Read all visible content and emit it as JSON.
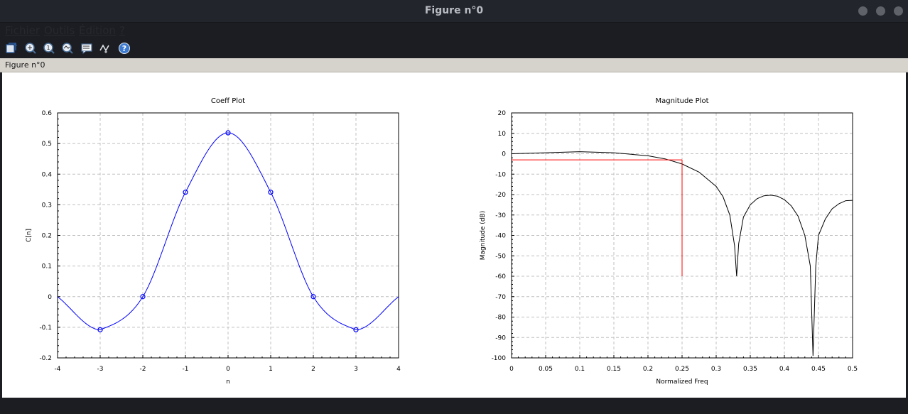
{
  "window": {
    "title": "Figure n°0",
    "buttons": [
      "minimize",
      "maximize",
      "close"
    ]
  },
  "menu": {
    "items": [
      {
        "label": "Fichier"
      },
      {
        "label": "Outils"
      },
      {
        "label": "Édition"
      },
      {
        "label": "?"
      }
    ]
  },
  "toolbar": {
    "tools": [
      {
        "icon": "rotate-icon"
      },
      {
        "icon": "zoom-icon"
      },
      {
        "icon": "zoom-reset-icon"
      },
      {
        "icon": "datatip-icon"
      },
      {
        "icon": "legend-icon"
      },
      {
        "icon": "curve-icon"
      },
      {
        "icon": "help-icon"
      }
    ]
  },
  "figure_label": "Figure n°0",
  "colors": {
    "coeff_series": "#0000ff",
    "magnitude_series": "#000000",
    "reference_line": "#ff0000",
    "grid": "#c0c0c0"
  },
  "chart_data": [
    {
      "type": "line",
      "title": "Coeff Plot",
      "xlabel": "n",
      "ylabel": "C[n]",
      "xlim": [
        -4,
        4
      ],
      "ylim": [
        -0.2,
        0.6
      ],
      "xticks": [
        -4,
        -3,
        -2,
        -1,
        0,
        1,
        2,
        3,
        4
      ],
      "yticks": [
        -0.2,
        -0.1,
        0,
        0.1,
        0.2,
        0.3,
        0.4,
        0.5,
        0.6
      ],
      "grid": true,
      "series": [
        {
          "style": "line+circle markers",
          "x": [
            -3,
            -2,
            -1,
            0,
            1,
            2,
            3
          ],
          "y": [
            -0.108,
            0.0,
            0.341,
            0.535,
            0.341,
            0.0,
            -0.108
          ]
        }
      ]
    },
    {
      "type": "line",
      "title": "Magnitude Plot",
      "xlabel": "Normalized Freq",
      "ylabel": "Magnitude (dB)",
      "xlim": [
        0,
        0.5
      ],
      "ylim": [
        -100,
        20
      ],
      "xticks": [
        0,
        0.05,
        0.1,
        0.15,
        0.2,
        0.25,
        0.3,
        0.35,
        0.4,
        0.45,
        0.5
      ],
      "yticks": [
        -100,
        -90,
        -80,
        -70,
        -60,
        -50,
        -40,
        -30,
        -20,
        -10,
        0,
        10,
        20
      ],
      "grid": true,
      "series": [
        {
          "x": [
            0,
            0.05,
            0.1,
            0.15,
            0.2,
            0.225,
            0.25,
            0.275,
            0.3,
            0.31,
            0.32,
            0.327,
            0.33,
            0.333,
            0.34,
            0.35,
            0.36,
            0.37,
            0.38,
            0.39,
            0.4,
            0.41,
            0.42,
            0.43,
            0.438,
            0.442,
            0.446,
            0.45,
            0.46,
            0.47,
            0.48,
            0.49,
            0.5
          ],
          "y": [
            0,
            0.5,
            1,
            0.5,
            -1,
            -2.5,
            -5,
            -9,
            -16,
            -21,
            -30,
            -45,
            -60,
            -44,
            -31,
            -25,
            -22,
            -20.6,
            -20.3,
            -20.8,
            -22.5,
            -25.5,
            -30.5,
            -40,
            -55,
            -99,
            -55,
            -40,
            -32,
            -27,
            -24.5,
            -23,
            -22.8
          ]
        }
      ],
      "reference_lines": [
        {
          "type": "horizontal",
          "y": -3,
          "x_range": [
            0,
            0.25
          ]
        },
        {
          "type": "vertical",
          "x": 0.25,
          "y_range": [
            -60,
            -3
          ]
        }
      ]
    }
  ]
}
